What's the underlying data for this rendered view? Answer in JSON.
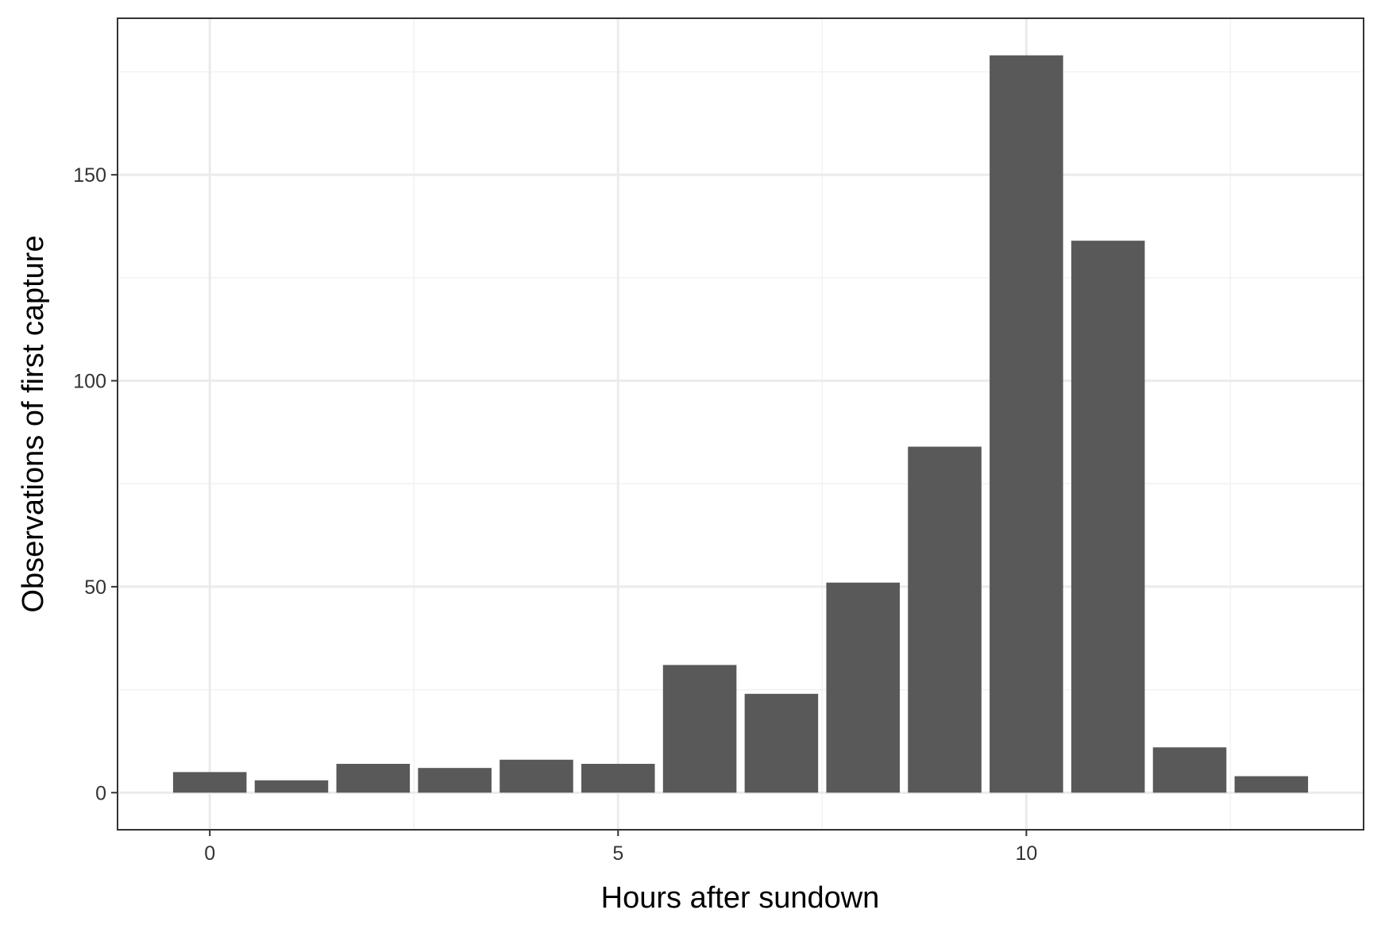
{
  "chart_data": {
    "type": "bar",
    "title": "",
    "xlabel": "Hours after sundown",
    "ylabel": "Observations of first capture",
    "x": [
      0,
      1,
      2,
      3,
      4,
      5,
      6,
      7,
      8,
      9,
      10,
      11,
      12,
      13
    ],
    "values": [
      5,
      3,
      7,
      6,
      8,
      7,
      31,
      24,
      51,
      84,
      179,
      134,
      11,
      4
    ],
    "xlim": [
      -1.13,
      14.13
    ],
    "ylim": [
      -9,
      188
    ],
    "x_ticks": [
      0,
      5,
      10
    ],
    "x_tick_labels": [
      "0",
      "5",
      "10"
    ],
    "y_ticks": [
      0,
      50,
      100,
      150
    ],
    "y_tick_labels": [
      "0",
      "50",
      "100",
      "150"
    ],
    "grid": true,
    "legend": "none",
    "colors": {
      "bar": "#595959",
      "panel_border": "#333333",
      "grid_major": "#ebebeb",
      "grid_minor": "#f2f2f2",
      "background": "#ffffff"
    }
  }
}
